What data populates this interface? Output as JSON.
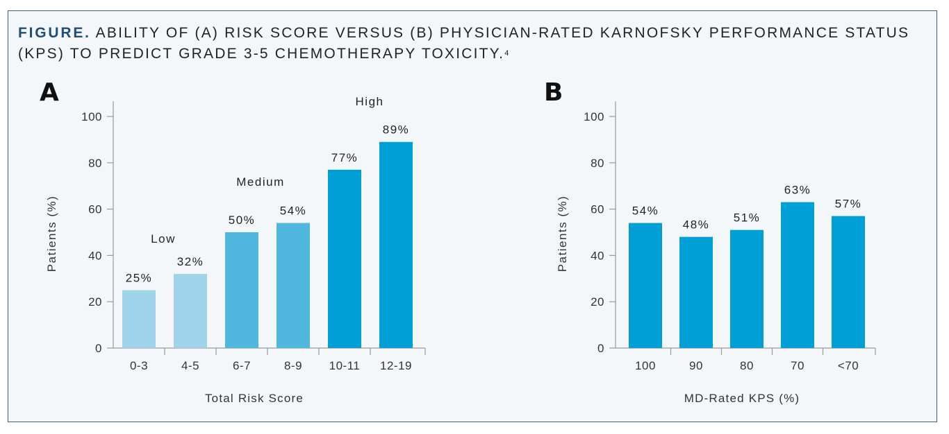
{
  "caption": {
    "lead": "FIGURE.",
    "text": "ABILITY OF (A) RISK SCORE VERSUS (B) PHYSICIAN-RATED KARNOFSKY PERFORMANCE STATUS (KPS) TO PREDICT GRADE 3-5 CHEMOTHERAPY TOXICITY.",
    "ref": "4"
  },
  "colors": {
    "low": "#9fd3ea",
    "medium": "#4fb6de",
    "high": "#00a0d6",
    "frame": "#3d5d7a",
    "background": "#f4f7fa"
  },
  "chart_data": [
    {
      "panel": "A",
      "type": "bar",
      "categories": [
        "0-3",
        "4-5",
        "6-7",
        "8-9",
        "10-11",
        "12-19"
      ],
      "values": [
        25,
        32,
        50,
        54,
        77,
        89
      ],
      "data_labels": [
        "25%",
        "32%",
        "50%",
        "54%",
        "77%",
        "89%"
      ],
      "groups": [
        "low",
        "low",
        "medium",
        "medium",
        "high",
        "high"
      ],
      "group_labels": [
        {
          "text": "Low",
          "group": "low"
        },
        {
          "text": "Medium",
          "group": "medium"
        },
        {
          "text": "High",
          "group": "high"
        }
      ],
      "xlabel": "Total Risk Score",
      "ylabel": "Patients (%)",
      "ylim": [
        0,
        100
      ],
      "yticks": [
        0,
        20,
        40,
        60,
        80,
        100
      ]
    },
    {
      "panel": "B",
      "type": "bar",
      "categories": [
        "100",
        "90",
        "80",
        "70",
        "<70"
      ],
      "values": [
        54,
        48,
        51,
        63,
        57
      ],
      "data_labels": [
        "54%",
        "48%",
        "51%",
        "63%",
        "57%"
      ],
      "groups": [
        "high",
        "high",
        "high",
        "high",
        "high"
      ],
      "xlabel": "MD-Rated KPS (%)",
      "ylabel": "Patients (%)",
      "ylim": [
        0,
        100
      ],
      "yticks": [
        0,
        20,
        40,
        60,
        80,
        100
      ]
    }
  ]
}
